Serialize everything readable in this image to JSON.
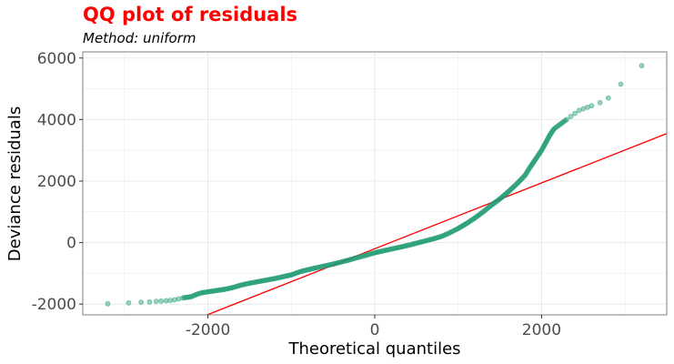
{
  "chart_data": {
    "type": "scatter",
    "title": "QQ plot of residuals",
    "subtitle": "Method: uniform",
    "xlabel": "Theoretical quantiles",
    "ylabel": "Deviance residuals",
    "xlim": [
      -3500,
      3500
    ],
    "ylim": [
      -2350,
      6200
    ],
    "x_ticks": [
      -2000,
      0,
      2000
    ],
    "x_tick_labels": [
      "-2000",
      "0",
      "2000"
    ],
    "y_ticks": [
      -2000,
      0,
      2000,
      4000,
      6000
    ],
    "y_tick_labels": [
      "-2000",
      "0",
      "2000",
      "4000",
      "6000"
    ],
    "grid": true,
    "colors": {
      "title": "#ff0000",
      "points": "#1a9a72",
      "reference_line": "#ff0000",
      "grid": "#ebebeb",
      "panel_border": "#7f7f7f"
    },
    "reference_line": {
      "intercept": -200,
      "slope": 1.07
    },
    "series": [
      {
        "points": [
          [
            -3200,
            -1990
          ],
          [
            -2950,
            -1960
          ],
          [
            -2800,
            -1940
          ],
          [
            -2700,
            -1930
          ],
          [
            -2620,
            -1910
          ],
          [
            -2560,
            -1900
          ],
          [
            -2500,
            -1890
          ],
          [
            -2450,
            -1880
          ],
          [
            -2400,
            -1860
          ],
          [
            -2350,
            -1830
          ],
          [
            -2300,
            -1800
          ],
          [
            -2250,
            -1780
          ],
          [
            -2200,
            -1760
          ],
          [
            -2150,
            -1700
          ],
          [
            -2100,
            -1650
          ],
          [
            -2050,
            -1620
          ],
          [
            -2000,
            -1600
          ],
          [
            -1900,
            -1560
          ],
          [
            -1800,
            -1520
          ],
          [
            -1700,
            -1460
          ],
          [
            -1600,
            -1380
          ],
          [
            -1500,
            -1320
          ],
          [
            -1400,
            -1270
          ],
          [
            -1300,
            -1220
          ],
          [
            -1200,
            -1170
          ],
          [
            -1100,
            -1110
          ],
          [
            -1000,
            -1050
          ],
          [
            -900,
            -950
          ],
          [
            -800,
            -880
          ],
          [
            -700,
            -820
          ],
          [
            -600,
            -760
          ],
          [
            -500,
            -700
          ],
          [
            -400,
            -630
          ],
          [
            -300,
            -560
          ],
          [
            -200,
            -480
          ],
          [
            -100,
            -410
          ],
          [
            0,
            -330
          ],
          [
            100,
            -270
          ],
          [
            200,
            -210
          ],
          [
            300,
            -150
          ],
          [
            400,
            -90
          ],
          [
            500,
            -20
          ],
          [
            600,
            50
          ],
          [
            700,
            120
          ],
          [
            800,
            200
          ],
          [
            900,
            320
          ],
          [
            1000,
            460
          ],
          [
            1100,
            620
          ],
          [
            1200,
            800
          ],
          [
            1300,
            1000
          ],
          [
            1400,
            1220
          ],
          [
            1500,
            1420
          ],
          [
            1600,
            1650
          ],
          [
            1700,
            1900
          ],
          [
            1800,
            2180
          ],
          [
            1850,
            2400
          ],
          [
            1900,
            2600
          ],
          [
            1950,
            2800
          ],
          [
            2000,
            3000
          ],
          [
            2050,
            3250
          ],
          [
            2100,
            3500
          ],
          [
            2150,
            3700
          ],
          [
            2200,
            3800
          ],
          [
            2250,
            3900
          ],
          [
            2300,
            4000
          ],
          [
            2350,
            4100
          ],
          [
            2400,
            4200
          ],
          [
            2450,
            4300
          ],
          [
            2500,
            4350
          ],
          [
            2550,
            4400
          ],
          [
            2600,
            4450
          ],
          [
            2700,
            4550
          ],
          [
            2800,
            4700
          ],
          [
            2950,
            5150
          ],
          [
            3200,
            5750
          ]
        ]
      }
    ]
  }
}
